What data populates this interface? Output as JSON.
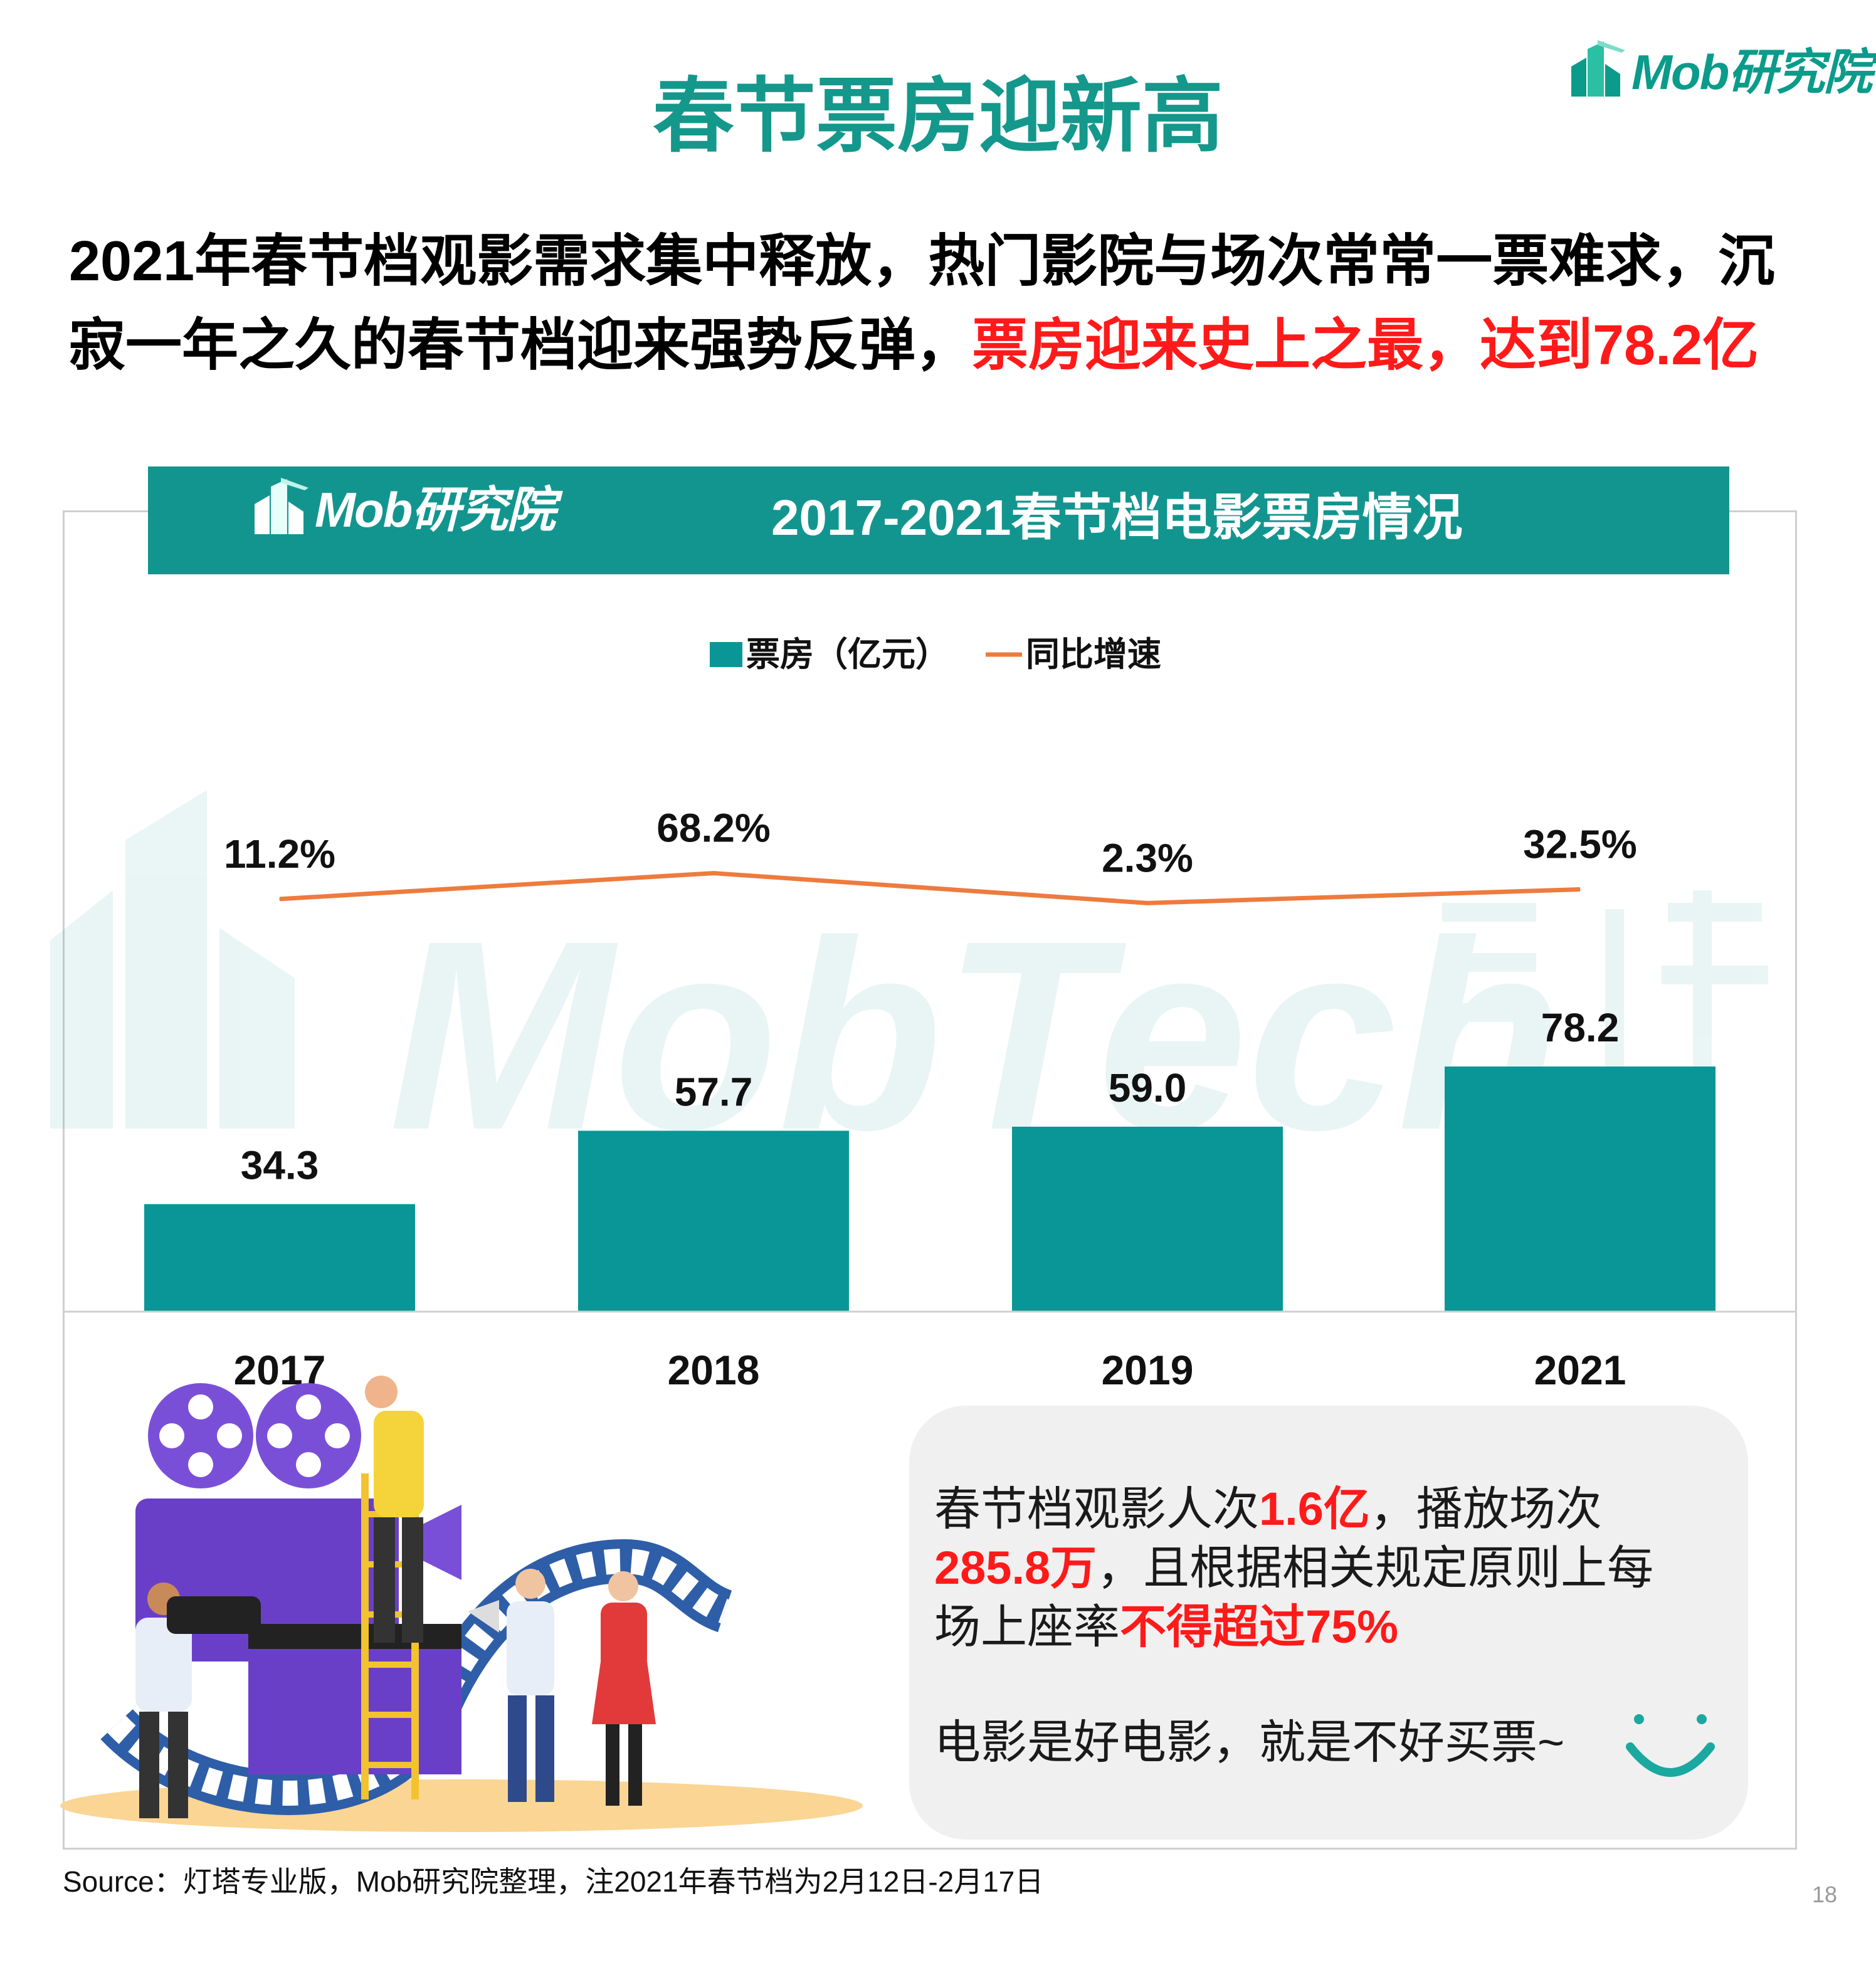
{
  "logo": {
    "text": "Mob研究院"
  },
  "title": "春节票房迎新高",
  "summary": {
    "line1": "2021年春节档观影需求集中释放，热门影院与场次常常一票难求，沉",
    "line2_normal": "寂一年之久的春节档迎来强势反弹，",
    "line2_highlight": "票房迎来史上之最，达到78.2亿"
  },
  "chart_data": {
    "type": "bar",
    "title": "2017-2021春节档电影票房情况",
    "categories": [
      "2017",
      "2018",
      "2019",
      "2021"
    ],
    "series": [
      {
        "name": "票房（亿元）",
        "type": "bar",
        "values": [
          34.3,
          57.7,
          59.0,
          78.2
        ],
        "labels": [
          "34.3",
          "57.7",
          "59.0",
          "78.2"
        ],
        "color": "#0a9697"
      },
      {
        "name": "同比增速",
        "type": "line",
        "values": [
          11.2,
          68.2,
          2.3,
          32.5
        ],
        "labels": [
          "11.2%",
          "68.2%",
          "2.3%",
          "32.5%"
        ],
        "color": "#ee7b3e"
      }
    ],
    "legend_position": "top-center",
    "grid": false
  },
  "info": {
    "l1_a": "春节档观影人次",
    "l1_b": "1.6亿",
    "l1_c": "，播放场次",
    "l2_a": "285.8万",
    "l2_b": "，且根据相关规定原则上每",
    "l3_a": "场上座率",
    "l3_b": "不得超过75%",
    "l4": "电影是好电影，就是不好买票~"
  },
  "source": "Source：灯塔专业版，Mob研究院整理，注2021年春节档为2月12日-2月17日",
  "page_number": "18",
  "colors": {
    "teal": "#13958f",
    "bar": "#0a9697",
    "line": "#ee7b3e",
    "red": "#ff1a1a"
  }
}
